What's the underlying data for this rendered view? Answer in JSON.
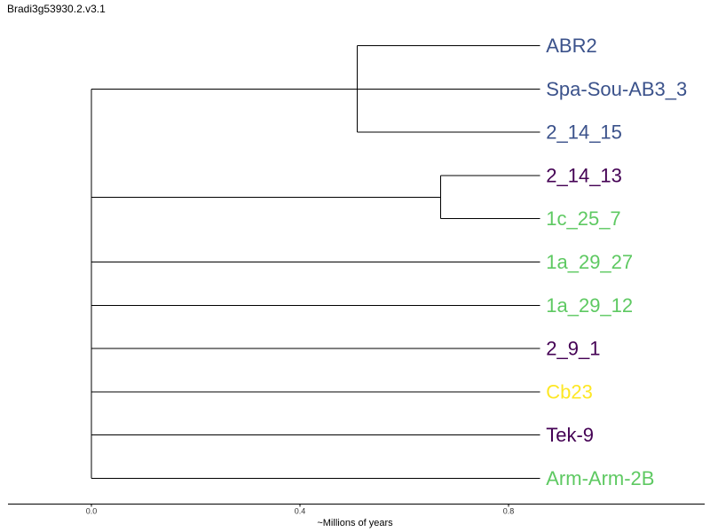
{
  "title": "Bradi3g53930.2.v3.1",
  "colors": {
    "blue": "#3b528b",
    "purple": "#440154",
    "green": "#5ec962",
    "yellow": "#fde725"
  },
  "tree": {
    "root_age": 0.0,
    "leaves": [
      {
        "label": "ABR2",
        "color": "blue"
      },
      {
        "label": "Spa-Sou-AB3_3",
        "color": "blue"
      },
      {
        "label": "2_14_15",
        "color": "blue"
      },
      {
        "label": "2_14_13",
        "color": "purple"
      },
      {
        "label": "1c_25_7",
        "color": "green"
      },
      {
        "label": "1a_29_27",
        "color": "green"
      },
      {
        "label": "1a_29_12",
        "color": "green"
      },
      {
        "label": "2_9_1",
        "color": "purple"
      },
      {
        "label": "Cb23",
        "color": "yellow"
      },
      {
        "label": "Tek-9",
        "color": "purple"
      },
      {
        "label": "Arm-Arm-2B",
        "color": "green"
      }
    ],
    "clades": [
      {
        "members": [
          0,
          1,
          2
        ],
        "node_value": 0.51
      },
      {
        "members": [
          3,
          4
        ],
        "node_value": 0.67
      }
    ],
    "tip_value": 0.86
  },
  "axis": {
    "title": "~Millions of years",
    "ticks": [
      "0.0",
      "0.4",
      "0.8"
    ],
    "tick_values": [
      0.0,
      0.4,
      0.8
    ]
  }
}
